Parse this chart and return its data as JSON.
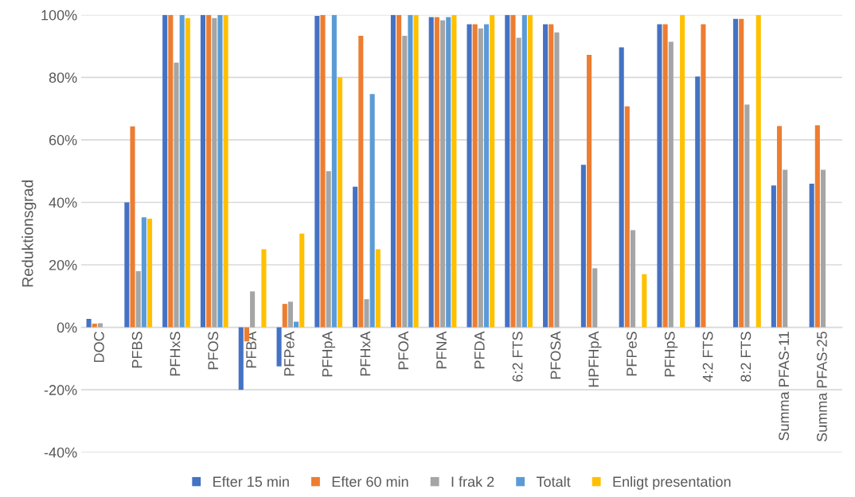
{
  "chart_data": {
    "type": "bar",
    "ylabel": "Reduktionsgrad",
    "categories": [
      "DOC",
      "PFBS",
      "PFHxS",
      "PFOS",
      "PFBA",
      "PFPeA",
      "PFHpA",
      "PFHxA",
      "PFOA",
      "PFNA",
      "PFDA",
      "6:2 FTS",
      "PFOSA",
      "HPFHpA",
      "PFPeS",
      "PFHpS",
      "4:2 FTS",
      "8:2 FTS",
      "Summa PFAS-11",
      "Summa PFAS-25"
    ],
    "series": [
      {
        "name": "Efter 15 min",
        "color": "#4472c4",
        "values": [
          2.7,
          40,
          100,
          100,
          -20,
          -12.5,
          99.7,
          45,
          100,
          99.3,
          97,
          100,
          97,
          52,
          89.6,
          97,
          80.3,
          98.7,
          45.4,
          46
        ]
      },
      {
        "name": "Efter 60 min",
        "color": "#ed7d31",
        "values": [
          1.2,
          64.3,
          100,
          100,
          -4.5,
          7.5,
          100,
          93.3,
          100,
          99.3,
          97,
          100,
          97,
          87.2,
          70.7,
          97,
          97,
          98.7,
          64.4,
          64.7
        ]
      },
      {
        "name": "I frak 2",
        "color": "#a5a5a5",
        "values": [
          1.3,
          18,
          84.7,
          99,
          11.5,
          8.2,
          50,
          9,
          93.3,
          98.3,
          95.7,
          92.7,
          94.4,
          18.9,
          31.1,
          91.4,
          null,
          71.3,
          50.4,
          50.4
        ]
      },
      {
        "name": "Totalt",
        "color": "#5b9bd5",
        "values": [
          null,
          35.2,
          100,
          100,
          null,
          1.8,
          100,
          74.7,
          100,
          99.3,
          97,
          100,
          null,
          null,
          null,
          null,
          null,
          null,
          null,
          null
        ]
      },
      {
        "name": "Enligt presentation",
        "color": "#ffc000",
        "values": [
          null,
          34.8,
          99,
          100,
          25,
          30,
          80,
          25,
          100,
          100,
          100,
          100,
          null,
          null,
          17,
          100,
          null,
          100,
          null,
          null
        ]
      }
    ],
    "ylim": [
      -40,
      100
    ],
    "yticks": [
      {
        "value": -40,
        "label": "-40%"
      },
      {
        "value": -20,
        "label": "-20%"
      },
      {
        "value": 0,
        "label": "0%"
      },
      {
        "value": 20,
        "label": "20%"
      },
      {
        "value": 40,
        "label": "40%"
      },
      {
        "value": 60,
        "label": "60%"
      },
      {
        "value": 80,
        "label": "80%"
      },
      {
        "value": 100,
        "label": "100%"
      }
    ],
    "grid": "y",
    "legend": "bottom"
  }
}
